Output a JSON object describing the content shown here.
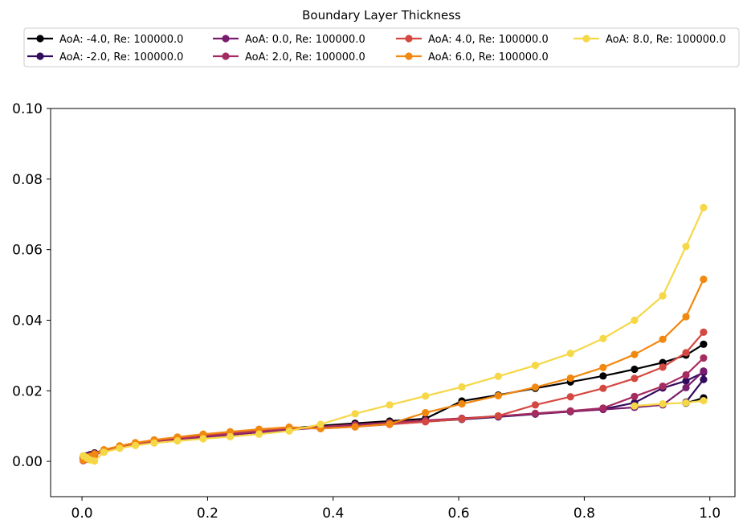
{
  "chart_data": {
    "type": "line",
    "title": "Boundary Layer Thickness",
    "xlabel": "",
    "ylabel": "",
    "xlim": [
      -0.05,
      1.04
    ],
    "ylim": [
      -0.01,
      0.1
    ],
    "xticks": [
      "0.0",
      "0.2",
      "0.4",
      "0.6",
      "0.8",
      "1.0"
    ],
    "yticks": [
      "0.00",
      "0.02",
      "0.04",
      "0.06",
      "0.08",
      "0.10"
    ],
    "legend_position": "top",
    "series": [
      {
        "name": "AoA: -4.0, Re: 100000.0",
        "color": "#000004",
        "x": [
          0.002,
          0.005,
          0.008,
          0.013,
          0.02,
          0.035,
          0.06,
          0.085,
          0.115,
          0.152,
          0.193,
          0.236,
          0.282,
          0.33,
          0.38,
          0.435,
          0.49,
          0.547,
          0.605,
          0.663,
          0.722,
          0.778,
          0.83,
          0.88,
          0.925,
          0.962,
          0.99
        ],
        "y": [
          0.0012,
          0.0014,
          0.0016,
          0.0019,
          0.0024,
          0.0032,
          0.0041,
          0.0049,
          0.0056,
          0.0063,
          0.007,
          0.0077,
          0.0085,
          0.0093,
          0.0101,
          0.0108,
          0.0114,
          0.0121,
          0.0171,
          0.0188,
          0.0207,
          0.0225,
          0.0242,
          0.0261,
          0.028,
          0.0301,
          0.0332
        ]
      },
      {
        "name": "AoA: -2.0, Re: 100000.0",
        "color": "#320a5e",
        "x": [
          0.002,
          0.005,
          0.008,
          0.013,
          0.02,
          0.035,
          0.06,
          0.085,
          0.115,
          0.152,
          0.193,
          0.236,
          0.282,
          0.33,
          0.38,
          0.435,
          0.49,
          0.547,
          0.605,
          0.663,
          0.722,
          0.778,
          0.83,
          0.88,
          0.925,
          0.962,
          0.99
        ],
        "y": [
          0.0011,
          0.0013,
          0.0015,
          0.0018,
          0.0023,
          0.0031,
          0.004,
          0.0048,
          0.0055,
          0.0062,
          0.0069,
          0.0076,
          0.0083,
          0.009,
          0.0097,
          0.0103,
          0.0108,
          0.0113,
          0.0119,
          0.0126,
          0.0134,
          0.0141,
          0.0148,
          0.0166,
          0.0208,
          0.0228,
          0.0252
        ]
      },
      {
        "name": "AoA: 0.0, Re: 100000.0",
        "color": "#781c6d",
        "x": [
          0.002,
          0.005,
          0.008,
          0.013,
          0.02,
          0.035,
          0.06,
          0.085,
          0.115,
          0.152,
          0.193,
          0.236,
          0.282,
          0.33,
          0.38,
          0.435,
          0.49,
          0.547,
          0.605,
          0.663,
          0.722,
          0.778,
          0.83,
          0.88,
          0.925,
          0.962,
          0.99
        ],
        "y": [
          0.001,
          0.0012,
          0.0014,
          0.0017,
          0.0022,
          0.003,
          0.0039,
          0.0047,
          0.0054,
          0.0061,
          0.0068,
          0.0075,
          0.0082,
          0.0089,
          0.0096,
          0.0102,
          0.0108,
          0.0114,
          0.0121,
          0.0128,
          0.0135,
          0.0141,
          0.0147,
          0.0153,
          0.016,
          0.0209,
          0.0256
        ]
      },
      {
        "name": "AoA: 2.0, Re: 100000.0",
        "color": "#a52c60",
        "x": [
          0.002,
          0.005,
          0.008,
          0.013,
          0.02,
          0.035,
          0.06,
          0.085,
          0.115,
          0.152,
          0.193,
          0.236,
          0.282,
          0.33,
          0.38,
          0.435,
          0.49,
          0.547,
          0.605,
          0.663,
          0.722,
          0.778,
          0.83,
          0.88,
          0.925,
          0.962,
          0.99
        ],
        "y": [
          0.0003,
          0.0006,
          0.0009,
          0.0013,
          0.0019,
          0.0029,
          0.0039,
          0.0048,
          0.0056,
          0.0063,
          0.0071,
          0.0078,
          0.0085,
          0.0092,
          0.0098,
          0.0104,
          0.011,
          0.0116,
          0.0122,
          0.0128,
          0.0136,
          0.0143,
          0.0151,
          0.0184,
          0.0213,
          0.0245,
          0.0293
        ]
      },
      {
        "name": "AoA: 4.0, Re: 100000.0",
        "color": "#d44842",
        "x": [
          0.002,
          0.005,
          0.008,
          0.013,
          0.02,
          0.035,
          0.06,
          0.085,
          0.115,
          0.152,
          0.193,
          0.236,
          0.282,
          0.33,
          0.38,
          0.435,
          0.49,
          0.547,
          0.605,
          0.663,
          0.722,
          0.778,
          0.83,
          0.88,
          0.925,
          0.962,
          0.99
        ],
        "y": [
          0.0002,
          0.0005,
          0.0008,
          0.0012,
          0.0018,
          0.0029,
          0.004,
          0.005,
          0.0059,
          0.0067,
          0.0075,
          0.0082,
          0.0089,
          0.0095,
          0.0093,
          0.0098,
          0.0105,
          0.0112,
          0.012,
          0.0129,
          0.016,
          0.0183,
          0.0207,
          0.0235,
          0.0267,
          0.0308,
          0.0366
        ]
      },
      {
        "name": "AoA: 6.0, Re: 100000.0",
        "color": "#f1880f",
        "x": [
          0.002,
          0.005,
          0.008,
          0.013,
          0.02,
          0.035,
          0.06,
          0.085,
          0.115,
          0.152,
          0.193,
          0.236,
          0.282,
          0.33,
          0.38,
          0.435,
          0.49,
          0.547,
          0.605,
          0.663,
          0.722,
          0.778,
          0.83,
          0.88,
          0.925,
          0.962,
          0.99
        ],
        "y": [
          0.0004,
          0.0007,
          0.001,
          0.0014,
          0.0021,
          0.0033,
          0.0044,
          0.0053,
          0.0061,
          0.0069,
          0.0077,
          0.0084,
          0.0091,
          0.0097,
          0.0093,
          0.0098,
          0.0106,
          0.0138,
          0.0163,
          0.0186,
          0.021,
          0.0236,
          0.0266,
          0.0303,
          0.0346,
          0.041,
          0.0516
        ]
      },
      {
        "name": "AoA: 8.0, Re: 100000.0",
        "color": "#f6d746",
        "x": [
          0.002,
          0.005,
          0.008,
          0.013,
          0.02,
          0.035,
          0.06,
          0.085,
          0.115,
          0.152,
          0.193,
          0.236,
          0.282,
          0.33,
          0.38,
          0.435,
          0.49,
          0.547,
          0.605,
          0.663,
          0.722,
          0.778,
          0.83,
          0.88,
          0.925,
          0.962,
          0.99
        ],
        "y": [
          0.0016,
          0.0013,
          0.0009,
          0.0004,
          0.0001,
          0.0026,
          0.0037,
          0.0045,
          0.0052,
          0.0058,
          0.0064,
          0.007,
          0.0077,
          0.0086,
          0.0105,
          0.0135,
          0.016,
          0.0185,
          0.0211,
          0.0241,
          0.0272,
          0.0306,
          0.0348,
          0.04,
          0.0469,
          0.0609,
          0.0719
        ]
      }
    ],
    "flat_tail_note": "Several series also include a second low branch near x 0.88-0.99",
    "extra_points": [
      {
        "series": 0,
        "x": [
          0.962,
          0.99
        ],
        "y": [
          0.0165,
          0.018
        ]
      },
      {
        "series": 1,
        "x": [
          0.962,
          0.99
        ],
        "y": [
          0.0168,
          0.0232
        ]
      },
      {
        "series": 6,
        "x": [
          0.88,
          0.925,
          0.962,
          0.99
        ],
        "y": [
          0.0157,
          0.0163,
          0.0166,
          0.0172
        ]
      }
    ]
  }
}
